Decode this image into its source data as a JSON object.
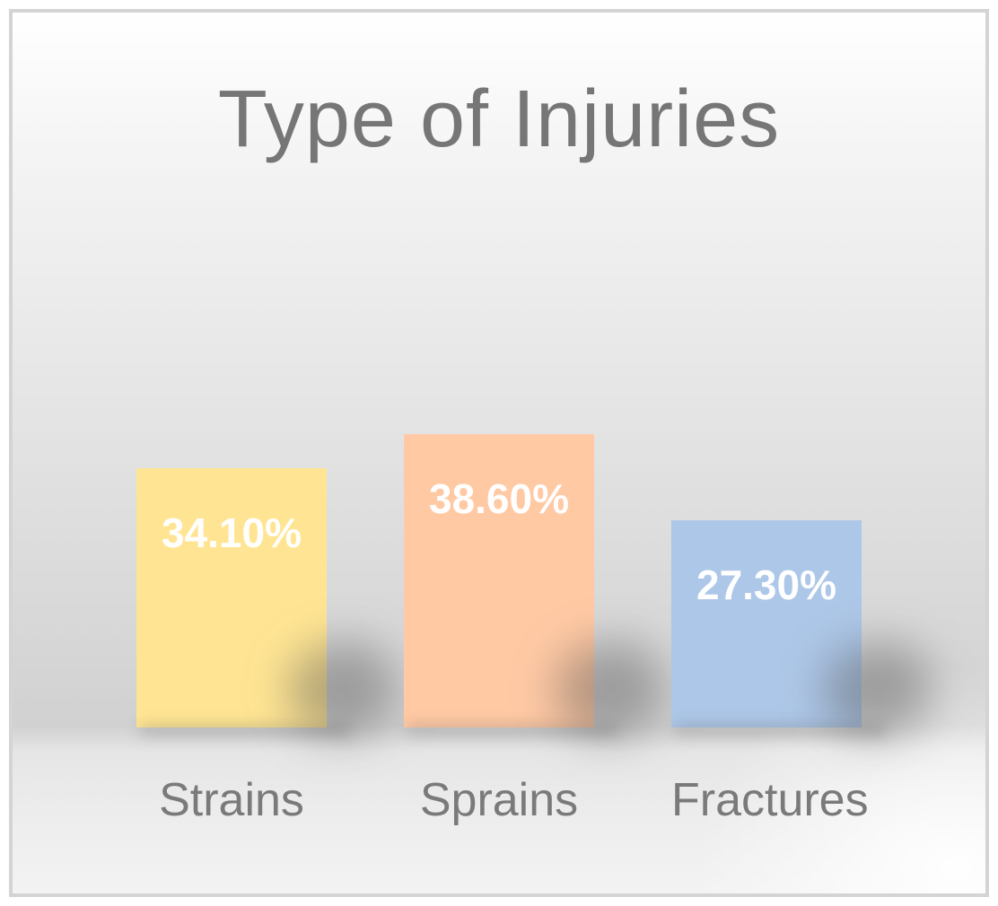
{
  "frame": {
    "border_color": "#d4d4d4"
  },
  "chart_data": {
    "type": "bar",
    "title": "Type of Injuries",
    "categories": [
      "Strains",
      "Sprains",
      "Fractures"
    ],
    "values": [
      34.1,
      38.6,
      27.3
    ],
    "value_labels": [
      "34.10%",
      "38.60%",
      "27.30%"
    ],
    "bar_colors": [
      "#FFE593",
      "#FFC9A4",
      "#ADC7E8"
    ],
    "title_color": "#767676",
    "category_label_color": "#7a7a7a",
    "value_label_color": "#ffffff",
    "xlabel": "",
    "ylabel": "",
    "ylim": [
      0,
      40
    ],
    "grid": false,
    "legend": false,
    "background": "gray-gradient"
  }
}
